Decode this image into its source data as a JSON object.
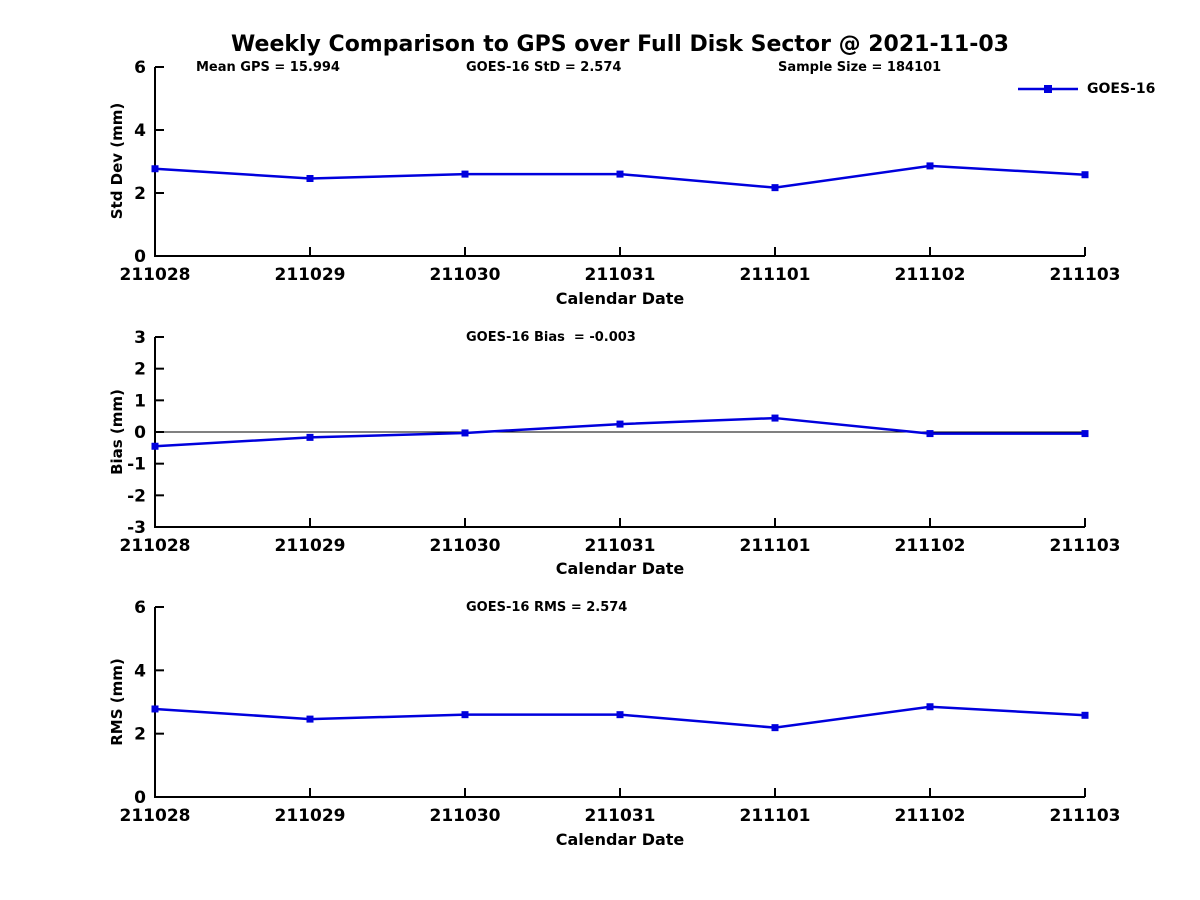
{
  "figure": {
    "title": "Weekly Comparison to GPS over Full Disk Sector @ 2021-11-03",
    "background_color": "#ffffff",
    "text_color": "#000000"
  },
  "legend": {
    "label": "GOES-16",
    "color": "#0000dd",
    "marker": "filled-square",
    "position": "top-right"
  },
  "series_color": "#0000dd",
  "chart_data": [
    {
      "type": "line",
      "name": "std-dev-vs-date",
      "xlabel": "Calendar Date",
      "ylabel": "Std Dev (mm)",
      "x_categories": [
        "211028",
        "211029",
        "211030",
        "211031",
        "211101",
        "211102",
        "211103"
      ],
      "series": [
        {
          "name": "GOES-16",
          "values": [
            2.77,
            2.46,
            2.6,
            2.6,
            2.17,
            2.86,
            2.58
          ]
        }
      ],
      "ylim": [
        0,
        6
      ],
      "yticks": [
        0,
        2,
        4,
        6
      ],
      "grid": false,
      "zero_line": false,
      "annotations": [
        {
          "text": "Mean GPS = 15.994"
        },
        {
          "text": "GOES-16 StD = 2.574"
        },
        {
          "text": "Sample Size = 184101"
        }
      ]
    },
    {
      "type": "line",
      "name": "bias-vs-date",
      "xlabel": "Calendar Date",
      "ylabel": "Bias (mm)",
      "x_categories": [
        "211028",
        "211029",
        "211030",
        "211031",
        "211101",
        "211102",
        "211103"
      ],
      "series": [
        {
          "name": "GOES-16",
          "values": [
            -0.45,
            -0.17,
            -0.03,
            0.25,
            0.44,
            -0.05,
            -0.05
          ]
        }
      ],
      "ylim": [
        -3,
        3
      ],
      "yticks": [
        -3,
        -2,
        -1,
        0,
        1,
        2,
        3
      ],
      "grid": false,
      "zero_line": true,
      "annotations": [
        {
          "text": "GOES-16 Bias  = -0.003"
        }
      ]
    },
    {
      "type": "line",
      "name": "rms-vs-date",
      "xlabel": "Calendar Date",
      "ylabel": "RMS (mm)",
      "x_categories": [
        "211028",
        "211029",
        "211030",
        "211031",
        "211101",
        "211102",
        "211103"
      ],
      "series": [
        {
          "name": "GOES-16",
          "values": [
            2.78,
            2.46,
            2.6,
            2.6,
            2.19,
            2.85,
            2.58
          ]
        }
      ],
      "ylim": [
        0,
        6
      ],
      "yticks": [
        0,
        2,
        4,
        6
      ],
      "grid": false,
      "zero_line": false,
      "annotations": [
        {
          "text": "GOES-16 RMS = 2.574"
        }
      ]
    }
  ]
}
